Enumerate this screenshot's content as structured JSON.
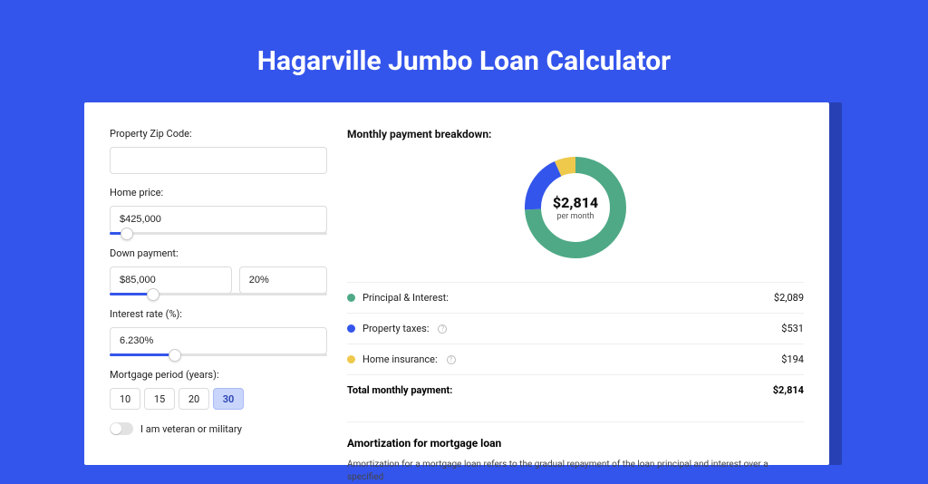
{
  "page": {
    "title": "Hagarville Jumbo Loan Calculator",
    "background_color": "#3455eb",
    "shadow_color": "#2741b5",
    "panel_bg": "#ffffff"
  },
  "form": {
    "zip": {
      "label": "Property Zip Code:",
      "value": ""
    },
    "home_price": {
      "label": "Home price:",
      "value": "$425,000",
      "slider_pct": 8
    },
    "down_payment": {
      "label": "Down payment:",
      "amount": "$85,000",
      "percent": "20%",
      "slider_pct": 20
    },
    "interest_rate": {
      "label": "Interest rate (%):",
      "value": "6.230%",
      "slider_pct": 30
    },
    "period": {
      "label": "Mortgage period (years):",
      "options": [
        "10",
        "15",
        "20",
        "30"
      ],
      "selected_index": 3
    },
    "veteran": {
      "label": "I am veteran or military",
      "checked": false
    }
  },
  "breakdown": {
    "title": "Monthly payment breakdown:",
    "center_amount": "$2,814",
    "center_sub": "per month",
    "donut": {
      "radius": 47,
      "stroke_width": 18,
      "slices": [
        {
          "name": "principal_interest",
          "color": "#4fa986",
          "pct": 74.2
        },
        {
          "name": "property_taxes",
          "color": "#3455eb",
          "pct": 18.9
        },
        {
          "name": "home_insurance",
          "color": "#efc94c",
          "pct": 6.9
        }
      ]
    },
    "items": [
      {
        "label": "Principal & Interest:",
        "value": "$2,089",
        "color": "#4fa986",
        "info": false
      },
      {
        "label": "Property taxes:",
        "value": "$531",
        "color": "#3455eb",
        "info": true
      },
      {
        "label": "Home insurance:",
        "value": "$194",
        "color": "#efc94c",
        "info": true
      }
    ],
    "total": {
      "label": "Total monthly payment:",
      "value": "$2,814"
    }
  },
  "amortization": {
    "title": "Amortization for mortgage loan",
    "text": "Amortization for a mortgage loan refers to the gradual repayment of the loan principal and interest over a specified"
  }
}
